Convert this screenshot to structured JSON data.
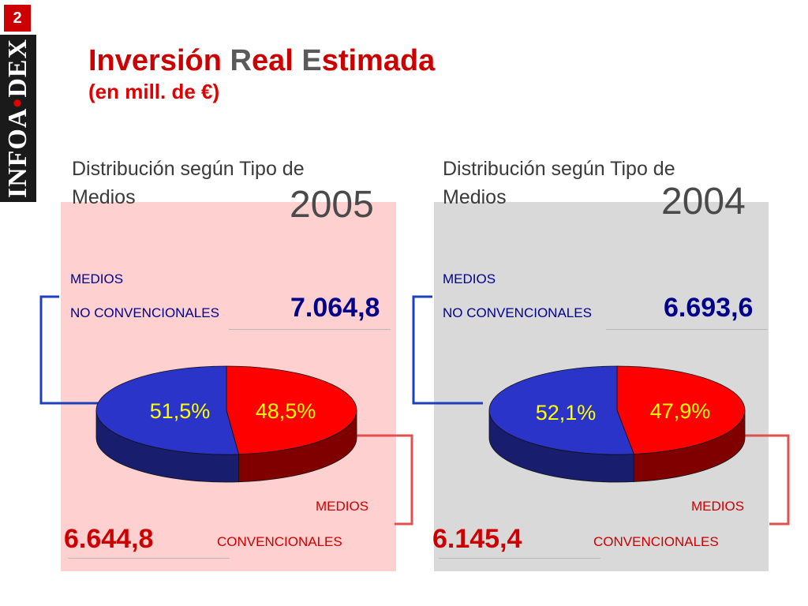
{
  "slide_number": "2",
  "brand": {
    "prefix": "INFOA",
    "dot": "•",
    "suffix": "DEX"
  },
  "title": {
    "part1": "Inversión ",
    "part2": "R",
    "part3": "eal ",
    "part4": "E",
    "part5": "stimada"
  },
  "subtitle": "(en mill. de €)",
  "colors": {
    "accent_red": "#cc0000",
    "navy": "#00008b",
    "pie_blue": "#2b34c8",
    "pie_red": "#ff0000",
    "panel_2005": "#ffd0d0",
    "panel_2004": "#d9d9d9"
  },
  "chart_data": [
    {
      "type": "pie",
      "title_line1": "Distribución según Tipo de",
      "title_line2": "Medios",
      "year": "2005",
      "no_conv_label_line1": "MEDIOS",
      "no_conv_label_line2": "NO CONVENCIONALES",
      "no_conv_value": "7.064,8",
      "conv_label_line1": "MEDIOS",
      "conv_label_line2": "CONVENCIONALES",
      "conv_value": "6.644,8",
      "slices": [
        {
          "name": "MEDIOS NO CONVENCIONALES",
          "value": 51.5,
          "label": "51,5%",
          "color": "#2b34c8"
        },
        {
          "name": "MEDIOS CONVENCIONALES",
          "value": 48.5,
          "label": "48,5%",
          "color": "#ff0000"
        }
      ]
    },
    {
      "type": "pie",
      "title_line1": "Distribución según Tipo de",
      "title_line2": "Medios",
      "year": "2004",
      "no_conv_label_line1": "MEDIOS",
      "no_conv_label_line2": "NO CONVENCIONALES",
      "no_conv_value": "6.693,6",
      "conv_label_line1": "MEDIOS",
      "conv_label_line2": "CONVENCIONALES",
      "conv_value": "6.145,4",
      "slices": [
        {
          "name": "MEDIOS NO CONVENCIONALES",
          "value": 52.1,
          "label": "52,1%",
          "color": "#2b34c8"
        },
        {
          "name": "MEDIOS CONVENCIONALES",
          "value": 47.9,
          "label": "47,9%",
          "color": "#ff0000"
        }
      ]
    }
  ]
}
